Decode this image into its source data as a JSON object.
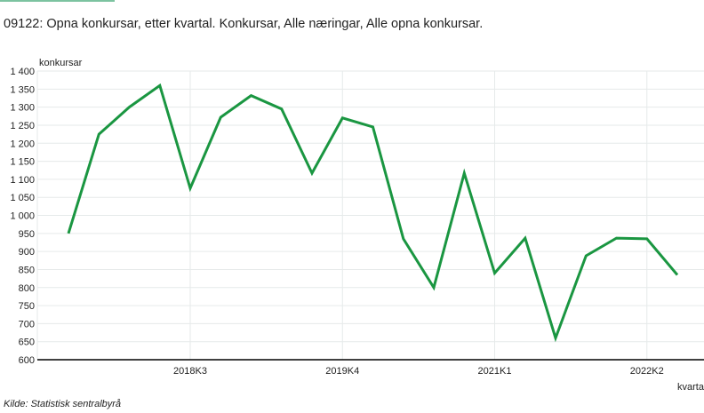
{
  "header": {
    "title": "09122: Opna konkursar, etter kvartal. Konkursar, Alle næringar, Alle opna konkursar."
  },
  "footer": {
    "source": "Kilde:  Statistisk sentralbyrå"
  },
  "colors": {
    "line": "#1a9641",
    "accent_bar": "#7cc3a0",
    "grid": "#e6eaea",
    "axis": "#000000"
  },
  "chart_data": {
    "type": "line",
    "title": "09122: Opna konkursar, etter kvartal. Konkursar, Alle næringar, Alle opna konkursar.",
    "xlabel": "kvartal",
    "ylabel": "konkursar",
    "ylim": [
      600,
      1400
    ],
    "yticks": [
      600,
      650,
      700,
      750,
      800,
      850,
      900,
      950,
      1000,
      1050,
      1100,
      1150,
      1200,
      1250,
      1300,
      1350,
      1400
    ],
    "ytick_labels": [
      "600",
      "650",
      "700",
      "750",
      "800",
      "850",
      "900",
      "950",
      "1 000",
      "1 050",
      "1 100",
      "1 150",
      "1 200",
      "1 250",
      "1 300",
      "1 350",
      "1 400"
    ],
    "xtick_labels": [
      "2018K3",
      "2019K4",
      "2021K1",
      "2022K2"
    ],
    "grid": true,
    "legend": "none",
    "categories": [
      "2017K3",
      "2017K4",
      "2018K1",
      "2018K2",
      "2018K3",
      "2018K4",
      "2019K1",
      "2019K2",
      "2019K3",
      "2019K4",
      "2020K1",
      "2020K2",
      "2020K3",
      "2020K4",
      "2021K1",
      "2021K2",
      "2021K3",
      "2021K4",
      "2022K1",
      "2022K2",
      "2022K3"
    ],
    "series": [
      {
        "name": "Alle opna konkursar",
        "values": [
          950,
          1225,
          1300,
          1360,
          1075,
          1272,
          1332,
          1295,
          1117,
          1270,
          1245,
          935,
          800,
          1117,
          840,
          937,
          660,
          888,
          937,
          935,
          835
        ]
      }
    ]
  }
}
